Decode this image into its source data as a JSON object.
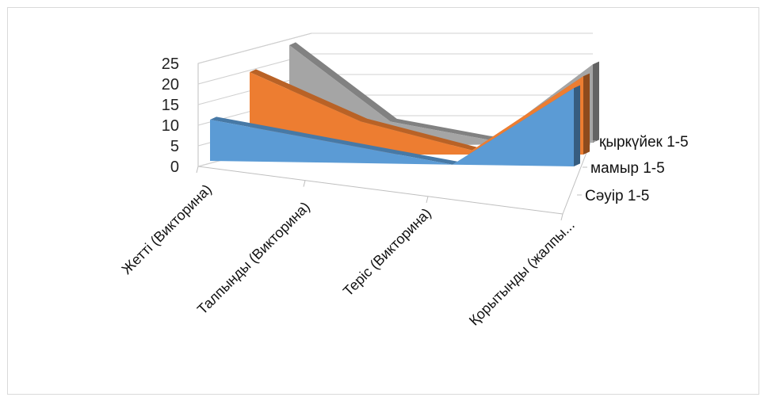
{
  "chart_data": {
    "type": "area",
    "subtype": "3d-area",
    "categories": [
      "Жетті (Викторина)",
      "Талпынды (Викторина)",
      "Теріс (Викторина)",
      "Қорытынды (жалпы..."
    ],
    "series": [
      {
        "name": "Сәуір 1-5",
        "values": [
          10,
          5,
          0,
          19
        ],
        "color": "#5b9bd5"
      },
      {
        "name": "мамыр 1-5",
        "values": [
          20,
          8,
          1,
          19
        ],
        "color": "#ed7d31"
      },
      {
        "name": "қыркүйек 1-5",
        "values": [
          25,
          6,
          1,
          19
        ],
        "color": "#a5a5a5"
      }
    ],
    "y_ticks": [
      "0",
      "5",
      "10",
      "15",
      "20",
      "25"
    ],
    "ylim": [
      0,
      25
    ],
    "grid": true,
    "legend": "none"
  }
}
